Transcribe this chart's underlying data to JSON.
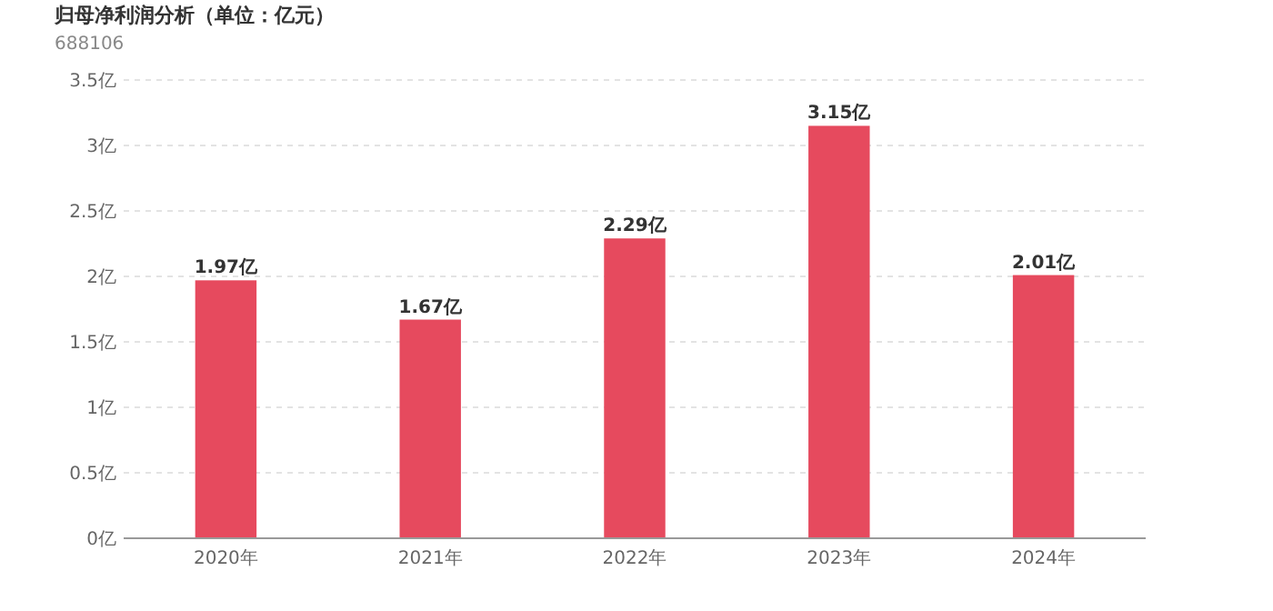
{
  "chart_data": {
    "type": "bar",
    "title": "归母净利润分析（单位：亿元）",
    "subtitle": "688106",
    "categories": [
      "2020年",
      "2021年",
      "2022年",
      "2023年",
      "2024年"
    ],
    "values": [
      1.97,
      1.67,
      2.29,
      3.15,
      2.01
    ],
    "value_labels": [
      "1.97亿",
      "1.67亿",
      "2.29亿",
      "3.15亿",
      "2.01亿"
    ],
    "color": "#e64a5e",
    "ylim": [
      0,
      3.5
    ],
    "yticks": [
      {
        "value": 0,
        "label": "0亿"
      },
      {
        "value": 0.5,
        "label": "0.5亿"
      },
      {
        "value": 1,
        "label": "1亿"
      },
      {
        "value": 1.5,
        "label": "1.5亿"
      },
      {
        "value": 2,
        "label": "2亿"
      },
      {
        "value": 2.5,
        "label": "2.5亿"
      },
      {
        "value": 3,
        "label": "3亿"
      },
      {
        "value": 3.5,
        "label": "3.5亿"
      }
    ],
    "grid": "y"
  }
}
